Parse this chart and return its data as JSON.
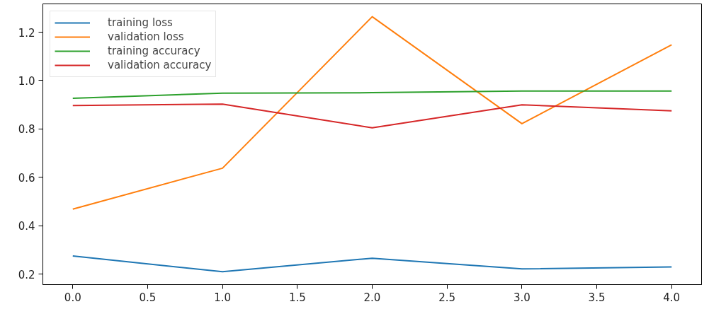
{
  "chart_data": {
    "type": "line",
    "x": [
      0,
      1,
      2,
      3,
      4
    ],
    "xlim": [
      -0.2,
      4.2
    ],
    "ylim": [
      0.157,
      1.317
    ],
    "xticks": [
      {
        "value": 0,
        "label": "0.0"
      },
      {
        "value": 0.5,
        "label": "0.5"
      },
      {
        "value": 1,
        "label": "1.0"
      },
      {
        "value": 1.5,
        "label": "1.5"
      },
      {
        "value": 2,
        "label": "2.0"
      },
      {
        "value": 2.5,
        "label": "2.5"
      },
      {
        "value": 3,
        "label": "3.0"
      },
      {
        "value": 3.5,
        "label": "3.5"
      },
      {
        "value": 4,
        "label": "4.0"
      }
    ],
    "yticks": [
      0.2,
      0.4,
      0.6,
      0.8,
      {
        "value": 1,
        "label": "1.0"
      },
      1.2
    ],
    "grid": false,
    "legend": "top left",
    "series": [
      {
        "name": "training loss",
        "color": "#1f77b4",
        "values": [
          0.275,
          0.21,
          0.266,
          0.222,
          0.23
        ]
      },
      {
        "name": "validation loss",
        "color": "#ff7f0e",
        "values": [
          0.469,
          0.638,
          1.264,
          0.822,
          1.148
        ]
      },
      {
        "name": "training accuracy",
        "color": "#2ca02c",
        "values": [
          0.927,
          0.948,
          0.95,
          0.957,
          0.957
        ]
      },
      {
        "name": "validation accuracy",
        "color": "#d62728",
        "values": [
          0.897,
          0.903,
          0.805,
          0.9,
          0.875
        ]
      }
    ]
  }
}
